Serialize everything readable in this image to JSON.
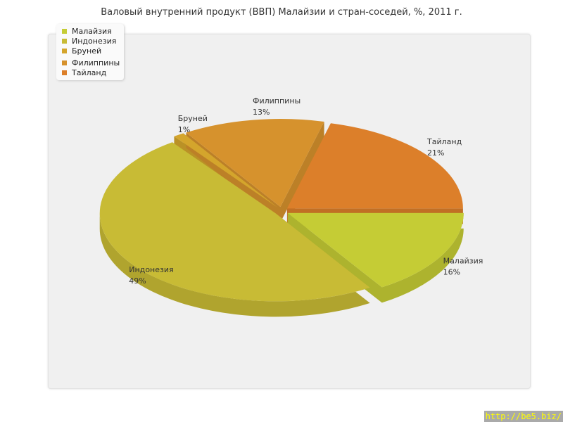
{
  "title": "Валовый внутренний продукт (ВВП) Малайзии и стран-соседей, %, 2011 г.",
  "watermark": "http://be5.biz/",
  "chart_data": {
    "type": "pie",
    "title": "Валовый внутренний продукт (ВВП) Малайзии и стран-соседей, %, 2011 г.",
    "legend_placement": "top-left",
    "three_d": true,
    "slices": [
      {
        "label": "Тайланд",
        "value": 21,
        "value_label": "21%",
        "color": "#dc7f2a"
      },
      {
        "label": "Малайзия",
        "value": 16,
        "value_label": "16%",
        "color": "#c5cc35"
      },
      {
        "label": "Индонезия",
        "value": 49,
        "value_label": "49%",
        "color": "#c8bb35"
      },
      {
        "label": "Бруней",
        "value": 1,
        "value_label": "1%",
        "color": "#d4a52c"
      },
      {
        "label": "Филиппины",
        "value": 13,
        "value_label": "13%",
        "color": "#d6922d"
      }
    ],
    "legend": [
      {
        "label": "Малайзия",
        "color": "#c5cc35"
      },
      {
        "label": "Индонезия",
        "color": "#c8bb35"
      },
      {
        "label": "Бруней",
        "color": "#d4a52c"
      },
      {
        "label": "Филиппины",
        "color": "#d6922d"
      },
      {
        "label": "Тайланд",
        "color": "#dc7f2a"
      }
    ]
  }
}
